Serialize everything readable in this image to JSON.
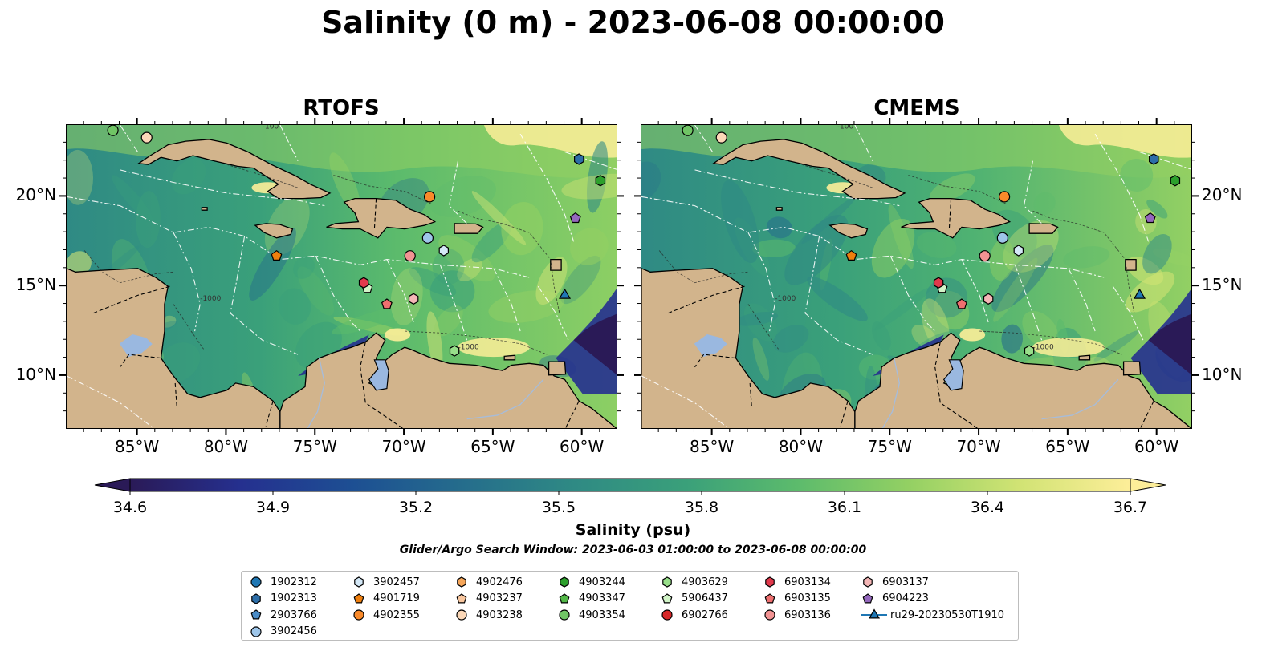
{
  "title": "Salinity (0 m) - 2023-06-08 00:00:00",
  "panels": [
    {
      "name": "RTOFS",
      "variant": 0
    },
    {
      "name": "CMEMS",
      "variant": 1
    }
  ],
  "map": {
    "lon_range": [
      -89,
      -58
    ],
    "lat_range": [
      7,
      24
    ],
    "lon_ticks": [
      {
        "value": -85,
        "label": "85°W"
      },
      {
        "value": -80,
        "label": "80°W"
      },
      {
        "value": -75,
        "label": "75°W"
      },
      {
        "value": -70,
        "label": "70°W"
      },
      {
        "value": -65,
        "label": "65°W"
      },
      {
        "value": -60,
        "label": "60°W"
      }
    ],
    "lat_ticks": [
      {
        "value": 20,
        "label": "20°N"
      },
      {
        "value": 15,
        "label": "15°N"
      },
      {
        "value": 10,
        "label": "10°N"
      }
    ],
    "contour_labels": [
      "-100",
      "-1000"
    ],
    "land_color": "#d2b48c",
    "lake_color": "#9ab8e0",
    "river_color": "#a8bcd8"
  },
  "colorbar": {
    "min": 34.6,
    "max": 36.7,
    "step": 0.075,
    "ticks": [
      "34.6",
      "34.9",
      "35.2",
      "35.5",
      "35.8",
      "36.1",
      "36.4",
      "36.7"
    ],
    "label": "Salinity (psu)",
    "colormap": [
      "#2a1a57",
      "#25308f",
      "#1d4f93",
      "#256d8c",
      "#2f8a84",
      "#3aa07a",
      "#5cbb6c",
      "#93d063",
      "#d1e374",
      "#fdee99"
    ]
  },
  "search_window": "Glider/Argo Search Window: 2023-06-03 01:00:00 to 2023-06-08 00:00:00",
  "legend": [
    {
      "label": "1902312",
      "marker": "circle",
      "color": "#1f77b4",
      "lon": -60.5,
      "lat": 23.5,
      "visible": false
    },
    {
      "label": "1902313",
      "marker": "hexagon",
      "color": "#2d6ea8",
      "lon": -60.2,
      "lat": 22.1,
      "visible": true
    },
    {
      "label": "2903766",
      "marker": "pentagon",
      "color": "#4a8cc7",
      "lon": -58.8,
      "lat": 25.0,
      "visible": false
    },
    {
      "label": "3902456",
      "marker": "circle",
      "color": "#9ec6ea",
      "lon": -68.7,
      "lat": 17.7,
      "visible": true
    },
    {
      "label": "3902457",
      "marker": "hexagon",
      "color": "#d4e8f7",
      "lon": -67.8,
      "lat": 17.0,
      "visible": true
    },
    {
      "label": "4901719",
      "marker": "pentagon",
      "color": "#ef7f0e",
      "lon": -77.2,
      "lat": 16.7,
      "visible": true
    },
    {
      "label": "4902355",
      "marker": "circle",
      "color": "#fa8a2a",
      "lon": -68.6,
      "lat": 20.0,
      "visible": true
    },
    {
      "label": "4902476",
      "marker": "hexagon",
      "color": "#f6a65a",
      "lon": -66.0,
      "lat": 25.0,
      "visible": false
    },
    {
      "label": "4903237",
      "marker": "pentagon",
      "color": "#f9c79f",
      "lon": -64.0,
      "lat": 25.0,
      "visible": false
    },
    {
      "label": "4903238",
      "marker": "circle",
      "color": "#fcd8b8",
      "lon": -84.5,
      "lat": 23.3,
      "visible": true
    },
    {
      "label": "4903244",
      "marker": "hexagon",
      "color": "#2ca02c",
      "lon": -59.0,
      "lat": 20.9,
      "visible": true
    },
    {
      "label": "4903347",
      "marker": "pentagon",
      "color": "#53b848",
      "lon": -62.0,
      "lat": 25.0,
      "visible": false
    },
    {
      "label": "4903354",
      "marker": "circle",
      "color": "#70c565",
      "lon": -86.4,
      "lat": 23.7,
      "visible": true
    },
    {
      "label": "4903629",
      "marker": "hexagon",
      "color": "#98df8a",
      "lon": -67.2,
      "lat": 11.4,
      "visible": true
    },
    {
      "label": "5906437",
      "marker": "pentagon",
      "color": "#d2f5c8",
      "lon": -72.1,
      "lat": 14.9,
      "visible": true
    },
    {
      "label": "6902766",
      "marker": "circle",
      "color": "#d62728",
      "lon": -60.0,
      "lat": 25.0,
      "visible": false
    },
    {
      "label": "6903134",
      "marker": "hexagon",
      "color": "#e2394c",
      "lon": -72.3,
      "lat": 15.2,
      "visible": true
    },
    {
      "label": "6903135",
      "marker": "pentagon",
      "color": "#ee6f6f",
      "lon": -71.0,
      "lat": 14.0,
      "visible": true
    },
    {
      "label": "6903136",
      "marker": "circle",
      "color": "#f29393",
      "lon": -69.7,
      "lat": 16.7,
      "visible": true
    },
    {
      "label": "6903137",
      "marker": "hexagon",
      "color": "#f4b6b6",
      "lon": -69.5,
      "lat": 14.3,
      "visible": true
    },
    {
      "label": "6904223",
      "marker": "pentagon",
      "color": "#9467bd",
      "lon": -60.4,
      "lat": 18.8,
      "visible": true
    },
    {
      "label": "ru29-20230530T1910",
      "marker": "triangle",
      "color": "#1f77b4",
      "lon": -61.0,
      "lat": 14.5,
      "visible": true
    }
  ]
}
